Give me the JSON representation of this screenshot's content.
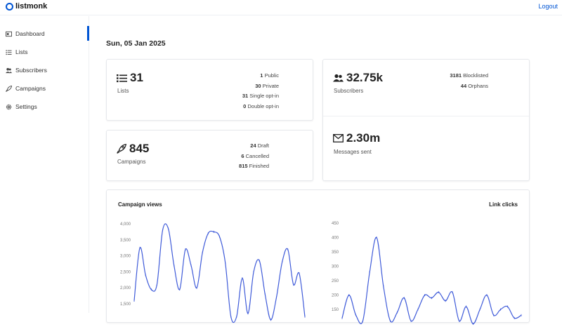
{
  "app": {
    "name": "listmonk",
    "logout_label": "Logout"
  },
  "sidebar": {
    "items": [
      {
        "label": "Dashboard",
        "icon": "dashboard-icon"
      },
      {
        "label": "Lists",
        "icon": "list-icon"
      },
      {
        "label": "Subscribers",
        "icon": "users-icon"
      },
      {
        "label": "Campaigns",
        "icon": "rocket-icon"
      },
      {
        "label": "Settings",
        "icon": "gear-icon"
      }
    ]
  },
  "dashboard": {
    "date": "Sun, 05 Jan 2025",
    "lists": {
      "count": "31",
      "label": "Lists",
      "breakdown": [
        {
          "value": "1",
          "label": "Public"
        },
        {
          "value": "30",
          "label": "Private"
        },
        {
          "value": "31",
          "label": "Single opt-in"
        },
        {
          "value": "0",
          "label": "Double opt-in"
        }
      ]
    },
    "subscribers": {
      "count": "32.75k",
      "label": "Subscribers",
      "breakdown": [
        {
          "value": "3181",
          "label": "Blocklisted"
        },
        {
          "value": "44",
          "label": "Orphans"
        }
      ]
    },
    "campaigns": {
      "count": "845",
      "label": "Campaigns",
      "breakdown": [
        {
          "value": "24",
          "label": "Draft"
        },
        {
          "value": "6",
          "label": "Cancelled"
        },
        {
          "value": "815",
          "label": "Finished"
        }
      ]
    },
    "messages": {
      "count": "2.30m",
      "label": "Messages sent"
    }
  },
  "colors": {
    "accent": "#0055d4",
    "line": "#3f5bd9"
  },
  "chart_data": [
    {
      "type": "line",
      "title": "Campaign views",
      "ylim": [
        1500,
        4000
      ],
      "yticks": [
        "4,000",
        "3,500",
        "3,000",
        "2,500",
        "2,000",
        "1,500"
      ],
      "values": [
        1600,
        3250,
        2400,
        1950,
        2100,
        3800,
        3850,
        2700,
        1950,
        3200,
        2700,
        2000,
        3100,
        3700,
        3750,
        3600,
        2800,
        1100,
        1100,
        2300,
        1200,
        2500,
        2850,
        1800,
        1000,
        1700,
        2800,
        3200,
        2100,
        2450,
        1100
      ]
    },
    {
      "type": "line",
      "title": "Link clicks",
      "ylim": [
        150,
        450
      ],
      "yticks": [
        "450",
        "400",
        "350",
        "300",
        "250",
        "200",
        "150"
      ],
      "values": [
        120,
        200,
        130,
        110,
        280,
        400,
        230,
        110,
        140,
        190,
        110,
        150,
        200,
        190,
        210,
        180,
        210,
        110,
        160,
        100,
        150,
        200,
        130,
        150,
        160,
        120,
        130
      ]
    }
  ]
}
